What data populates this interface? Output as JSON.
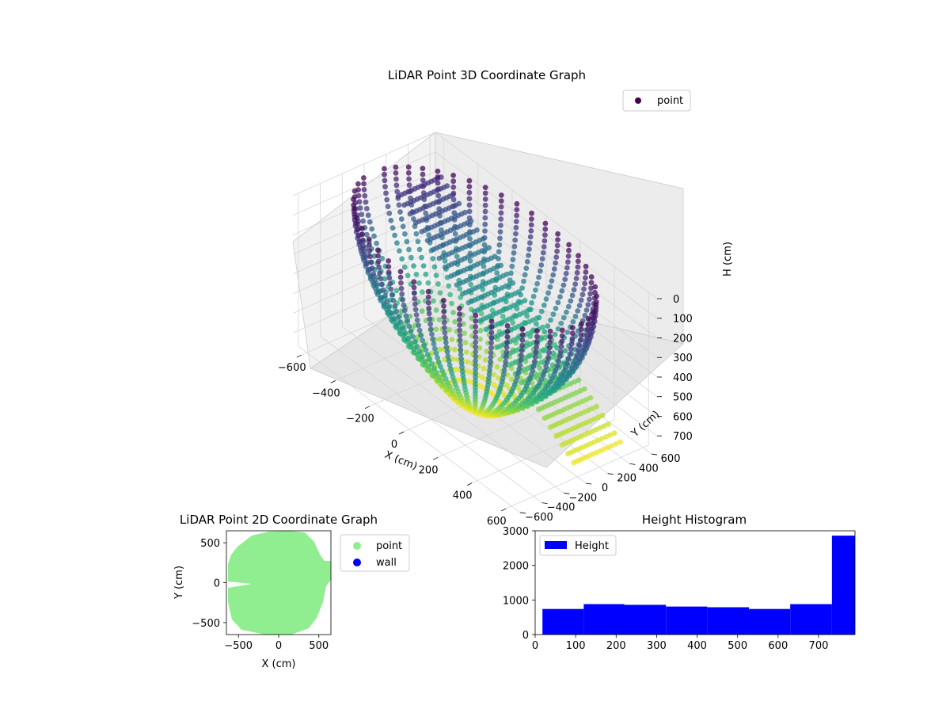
{
  "chart_data": [
    {
      "type": "scatter",
      "projection": "3d",
      "title": "LiDAR Point 3D Coordinate Graph",
      "xlabel": "X (cm)",
      "ylabel": "Y (cm)",
      "zlabel": "H (cm)",
      "xlim": [
        -650,
        650
      ],
      "ylim": [
        -650,
        650
      ],
      "zlim": [
        0,
        780
      ],
      "z_inverted": true,
      "xticks": [
        "−600",
        "−400",
        "−200",
        "0",
        "200",
        "400",
        "600"
      ],
      "yticks": [
        "−600",
        "−400",
        "−200",
        "0",
        "200",
        "400",
        "600"
      ],
      "zticks": [
        "0",
        "100",
        "200",
        "300",
        "400",
        "500",
        "600",
        "700"
      ],
      "colormap": "viridis",
      "grid": true,
      "legend": {
        "placement": "top-right",
        "entries": [
          {
            "label": "point",
            "color": "#440154"
          }
        ]
      },
      "series": [
        {
          "name": "point",
          "description_of_points": "curved scan lines of points around the sensor; color encodes height (low H = purple, high H = yellow)"
        }
      ]
    },
    {
      "type": "scatter",
      "title": "LiDAR Point 2D Coordinate Graph",
      "xlabel": "X (cm)",
      "ylabel": "Y (cm)",
      "xlim": [
        -650,
        650
      ],
      "ylim": [
        -650,
        650
      ],
      "xticks": [
        "−500",
        "0",
        "500"
      ],
      "yticks": [
        "−500",
        "0",
        "500"
      ],
      "legend": {
        "placement": "outside-right",
        "entries": [
          {
            "label": "point",
            "color": "#90ee90"
          },
          {
            "label": "wall",
            "color": "#0000ff"
          }
        ]
      },
      "series": [
        {
          "name": "point",
          "color": "#90ee90"
        },
        {
          "name": "wall",
          "color": "#0000ff"
        }
      ]
    },
    {
      "type": "bar",
      "subtype": "histogram",
      "title": "Height Histogram",
      "xlabel": "",
      "ylabel": "",
      "xlim": [
        0,
        790
      ],
      "ylim": [
        0,
        3000
      ],
      "xticks": [
        "0",
        "100",
        "200",
        "300",
        "400",
        "500",
        "600",
        "700"
      ],
      "yticks": [
        "0",
        "1000",
        "2000",
        "3000"
      ],
      "bar_color": "#0000ff",
      "legend": {
        "placement": "top-left",
        "entries": [
          {
            "label": "Height",
            "color": "#0000ff"
          }
        ]
      },
      "bins": [
        {
          "x0": 18,
          "x1": 120,
          "count": 740
        },
        {
          "x0": 120,
          "x1": 220,
          "count": 880
        },
        {
          "x0": 220,
          "x1": 323,
          "count": 860
        },
        {
          "x0": 323,
          "x1": 425,
          "count": 810
        },
        {
          "x0": 425,
          "x1": 528,
          "count": 790
        },
        {
          "x0": 528,
          "x1": 630,
          "count": 740
        },
        {
          "x0": 630,
          "x1": 733,
          "count": 880
        },
        {
          "x0": 733,
          "x1": 790,
          "count": 2860
        }
      ]
    }
  ]
}
